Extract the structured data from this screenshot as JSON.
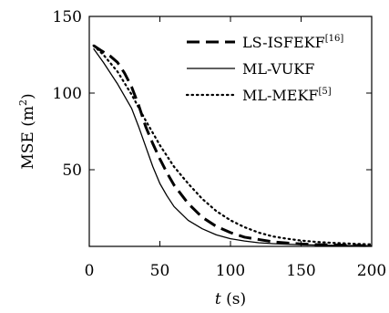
{
  "chart_data": {
    "type": "line",
    "xlabel": {
      "italic": "t",
      "rest": " (s)"
    },
    "ylabel": {
      "base": "MSE (m",
      "sup": "2",
      "close": ")"
    },
    "xlim": [
      0,
      200
    ],
    "ylim": [
      0,
      150
    ],
    "x_ticks": [
      0,
      50,
      100,
      150,
      200
    ],
    "y_ticks": [
      50,
      100,
      150
    ],
    "grid": false,
    "legend_position": "top-right",
    "series": [
      {
        "name": "LS-ISFEKF",
        "ref": "[16]",
        "style": "dashed",
        "x": [
          3,
          8,
          15,
          20,
          25,
          30,
          35,
          40,
          45,
          50,
          55,
          60,
          70,
          80,
          90,
          100,
          110,
          120,
          130,
          140,
          150,
          160,
          170,
          180,
          190,
          200
        ],
        "y": [
          131,
          128,
          124,
          120,
          113,
          104,
          92,
          78,
          67,
          57,
          48,
          40,
          28,
          19,
          13,
          9,
          6,
          4.5,
          3,
          2.2,
          1.6,
          1.2,
          1,
          0.8,
          0.6,
          0.5
        ]
      },
      {
        "name": "ML-VUKF",
        "ref": "",
        "style": "solid",
        "x": [
          3,
          10,
          20,
          30,
          35,
          40,
          45,
          50,
          55,
          60,
          70,
          80,
          90,
          100,
          110,
          120,
          130,
          140,
          150,
          160,
          170,
          180,
          190,
          200
        ],
        "y": [
          129,
          120,
          106,
          90,
          78,
          65,
          52,
          41,
          33,
          26,
          17,
          11.5,
          7.5,
          5,
          3.5,
          2.4,
          1.8,
          1.4,
          1.1,
          0.9,
          0.7,
          0.6,
          0.5,
          0.4
        ]
      },
      {
        "name": "ML-MEKF",
        "ref": "[5]",
        "style": "dotted",
        "x": [
          3,
          10,
          20,
          30,
          40,
          50,
          60,
          70,
          80,
          90,
          100,
          110,
          120,
          130,
          140,
          150,
          160,
          170,
          180,
          190,
          200
        ],
        "y": [
          131,
          125,
          114,
          99,
          82,
          66,
          52,
          41,
          31,
          23,
          17,
          12.5,
          9,
          6.5,
          5,
          3.8,
          3,
          2.4,
          2,
          1.6,
          1.3
        ]
      }
    ]
  }
}
